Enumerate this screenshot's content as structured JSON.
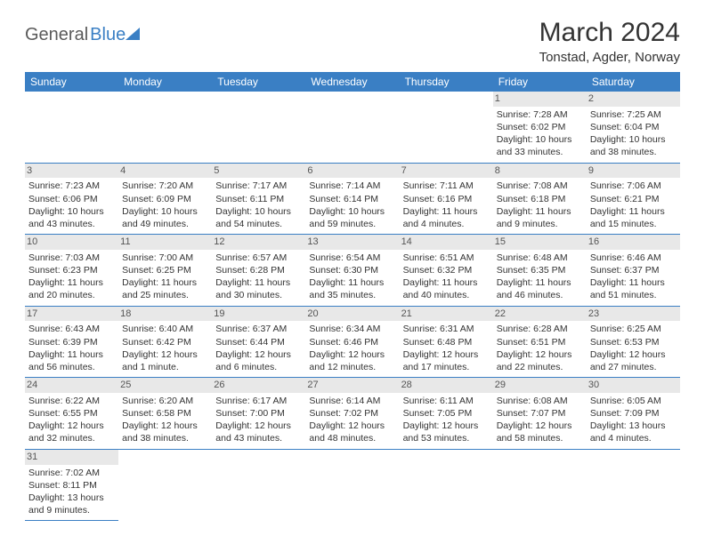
{
  "logo": {
    "part1": "General",
    "part2": "Blue"
  },
  "title": "March 2024",
  "location": "Tonstad, Agder, Norway",
  "colors": {
    "header_bg": "#3a7fc4",
    "header_text": "#ffffff",
    "daynum_bg": "#e8e8e8",
    "border": "#3a7fc4",
    "text": "#333333"
  },
  "days": [
    "Sunday",
    "Monday",
    "Tuesday",
    "Wednesday",
    "Thursday",
    "Friday",
    "Saturday"
  ],
  "weeks": [
    [
      null,
      null,
      null,
      null,
      null,
      {
        "n": "1",
        "sunrise": "Sunrise: 7:28 AM",
        "sunset": "Sunset: 6:02 PM",
        "day1": "Daylight: 10 hours",
        "day2": "and 33 minutes."
      },
      {
        "n": "2",
        "sunrise": "Sunrise: 7:25 AM",
        "sunset": "Sunset: 6:04 PM",
        "day1": "Daylight: 10 hours",
        "day2": "and 38 minutes."
      }
    ],
    [
      {
        "n": "3",
        "sunrise": "Sunrise: 7:23 AM",
        "sunset": "Sunset: 6:06 PM",
        "day1": "Daylight: 10 hours",
        "day2": "and 43 minutes."
      },
      {
        "n": "4",
        "sunrise": "Sunrise: 7:20 AM",
        "sunset": "Sunset: 6:09 PM",
        "day1": "Daylight: 10 hours",
        "day2": "and 49 minutes."
      },
      {
        "n": "5",
        "sunrise": "Sunrise: 7:17 AM",
        "sunset": "Sunset: 6:11 PM",
        "day1": "Daylight: 10 hours",
        "day2": "and 54 minutes."
      },
      {
        "n": "6",
        "sunrise": "Sunrise: 7:14 AM",
        "sunset": "Sunset: 6:14 PM",
        "day1": "Daylight: 10 hours",
        "day2": "and 59 minutes."
      },
      {
        "n": "7",
        "sunrise": "Sunrise: 7:11 AM",
        "sunset": "Sunset: 6:16 PM",
        "day1": "Daylight: 11 hours",
        "day2": "and 4 minutes."
      },
      {
        "n": "8",
        "sunrise": "Sunrise: 7:08 AM",
        "sunset": "Sunset: 6:18 PM",
        "day1": "Daylight: 11 hours",
        "day2": "and 9 minutes."
      },
      {
        "n": "9",
        "sunrise": "Sunrise: 7:06 AM",
        "sunset": "Sunset: 6:21 PM",
        "day1": "Daylight: 11 hours",
        "day2": "and 15 minutes."
      }
    ],
    [
      {
        "n": "10",
        "sunrise": "Sunrise: 7:03 AM",
        "sunset": "Sunset: 6:23 PM",
        "day1": "Daylight: 11 hours",
        "day2": "and 20 minutes."
      },
      {
        "n": "11",
        "sunrise": "Sunrise: 7:00 AM",
        "sunset": "Sunset: 6:25 PM",
        "day1": "Daylight: 11 hours",
        "day2": "and 25 minutes."
      },
      {
        "n": "12",
        "sunrise": "Sunrise: 6:57 AM",
        "sunset": "Sunset: 6:28 PM",
        "day1": "Daylight: 11 hours",
        "day2": "and 30 minutes."
      },
      {
        "n": "13",
        "sunrise": "Sunrise: 6:54 AM",
        "sunset": "Sunset: 6:30 PM",
        "day1": "Daylight: 11 hours",
        "day2": "and 35 minutes."
      },
      {
        "n": "14",
        "sunrise": "Sunrise: 6:51 AM",
        "sunset": "Sunset: 6:32 PM",
        "day1": "Daylight: 11 hours",
        "day2": "and 40 minutes."
      },
      {
        "n": "15",
        "sunrise": "Sunrise: 6:48 AM",
        "sunset": "Sunset: 6:35 PM",
        "day1": "Daylight: 11 hours",
        "day2": "and 46 minutes."
      },
      {
        "n": "16",
        "sunrise": "Sunrise: 6:46 AM",
        "sunset": "Sunset: 6:37 PM",
        "day1": "Daylight: 11 hours",
        "day2": "and 51 minutes."
      }
    ],
    [
      {
        "n": "17",
        "sunrise": "Sunrise: 6:43 AM",
        "sunset": "Sunset: 6:39 PM",
        "day1": "Daylight: 11 hours",
        "day2": "and 56 minutes."
      },
      {
        "n": "18",
        "sunrise": "Sunrise: 6:40 AM",
        "sunset": "Sunset: 6:42 PM",
        "day1": "Daylight: 12 hours",
        "day2": "and 1 minute."
      },
      {
        "n": "19",
        "sunrise": "Sunrise: 6:37 AM",
        "sunset": "Sunset: 6:44 PM",
        "day1": "Daylight: 12 hours",
        "day2": "and 6 minutes."
      },
      {
        "n": "20",
        "sunrise": "Sunrise: 6:34 AM",
        "sunset": "Sunset: 6:46 PM",
        "day1": "Daylight: 12 hours",
        "day2": "and 12 minutes."
      },
      {
        "n": "21",
        "sunrise": "Sunrise: 6:31 AM",
        "sunset": "Sunset: 6:48 PM",
        "day1": "Daylight: 12 hours",
        "day2": "and 17 minutes."
      },
      {
        "n": "22",
        "sunrise": "Sunrise: 6:28 AM",
        "sunset": "Sunset: 6:51 PM",
        "day1": "Daylight: 12 hours",
        "day2": "and 22 minutes."
      },
      {
        "n": "23",
        "sunrise": "Sunrise: 6:25 AM",
        "sunset": "Sunset: 6:53 PM",
        "day1": "Daylight: 12 hours",
        "day2": "and 27 minutes."
      }
    ],
    [
      {
        "n": "24",
        "sunrise": "Sunrise: 6:22 AM",
        "sunset": "Sunset: 6:55 PM",
        "day1": "Daylight: 12 hours",
        "day2": "and 32 minutes."
      },
      {
        "n": "25",
        "sunrise": "Sunrise: 6:20 AM",
        "sunset": "Sunset: 6:58 PM",
        "day1": "Daylight: 12 hours",
        "day2": "and 38 minutes."
      },
      {
        "n": "26",
        "sunrise": "Sunrise: 6:17 AM",
        "sunset": "Sunset: 7:00 PM",
        "day1": "Daylight: 12 hours",
        "day2": "and 43 minutes."
      },
      {
        "n": "27",
        "sunrise": "Sunrise: 6:14 AM",
        "sunset": "Sunset: 7:02 PM",
        "day1": "Daylight: 12 hours",
        "day2": "and 48 minutes."
      },
      {
        "n": "28",
        "sunrise": "Sunrise: 6:11 AM",
        "sunset": "Sunset: 7:05 PM",
        "day1": "Daylight: 12 hours",
        "day2": "and 53 minutes."
      },
      {
        "n": "29",
        "sunrise": "Sunrise: 6:08 AM",
        "sunset": "Sunset: 7:07 PM",
        "day1": "Daylight: 12 hours",
        "day2": "and 58 minutes."
      },
      {
        "n": "30",
        "sunrise": "Sunrise: 6:05 AM",
        "sunset": "Sunset: 7:09 PM",
        "day1": "Daylight: 13 hours",
        "day2": "and 4 minutes."
      }
    ],
    [
      {
        "n": "31",
        "sunrise": "Sunrise: 7:02 AM",
        "sunset": "Sunset: 8:11 PM",
        "day1": "Daylight: 13 hours",
        "day2": "and 9 minutes."
      },
      null,
      null,
      null,
      null,
      null,
      null
    ]
  ]
}
